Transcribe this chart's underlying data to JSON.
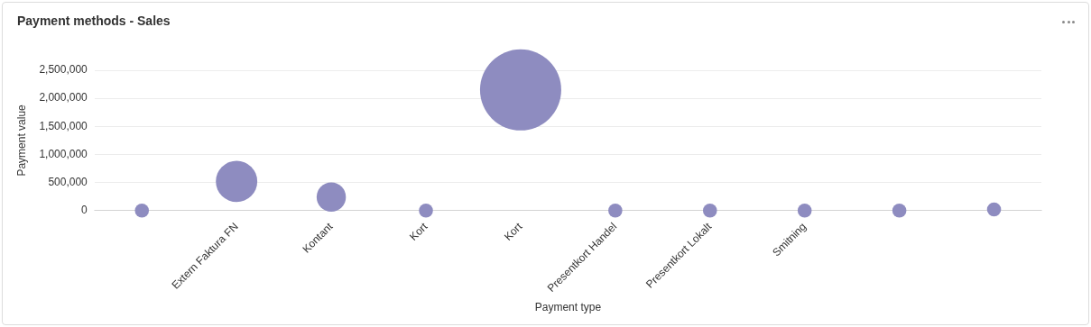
{
  "chart_data": {
    "type": "bubble",
    "title": "Payment methods - Sales",
    "xlabel": "Payment type",
    "ylabel": "Payment value",
    "categories": [
      null,
      "Extern Faktura FN",
      "Kontant",
      "Kort",
      "Kort",
      "Presentkort Handel",
      "Presentkort Lokalt",
      "Smitning",
      null,
      null
    ],
    "values": [
      0,
      520000,
      240000,
      0,
      2150000,
      0,
      0,
      0,
      0,
      20000
    ],
    "sizes": [
      0.03,
      0.26,
      0.13,
      0.03,
      1,
      0.03,
      0.03,
      0.03,
      0.03,
      0.03
    ],
    "color": "#8e8cc0",
    "ylim": [
      0,
      2500000
    ],
    "yticks": [
      0,
      {
        "value": 500000,
        "label": "500,000"
      },
      {
        "value": 1000000,
        "label": "1,000,000"
      },
      {
        "value": 1500000,
        "label": "1,500,000"
      },
      {
        "value": 2000000,
        "label": "2,000,000"
      },
      {
        "value": 2500000,
        "label": "2,500,000"
      }
    ],
    "grid": "y",
    "legend": false
  }
}
